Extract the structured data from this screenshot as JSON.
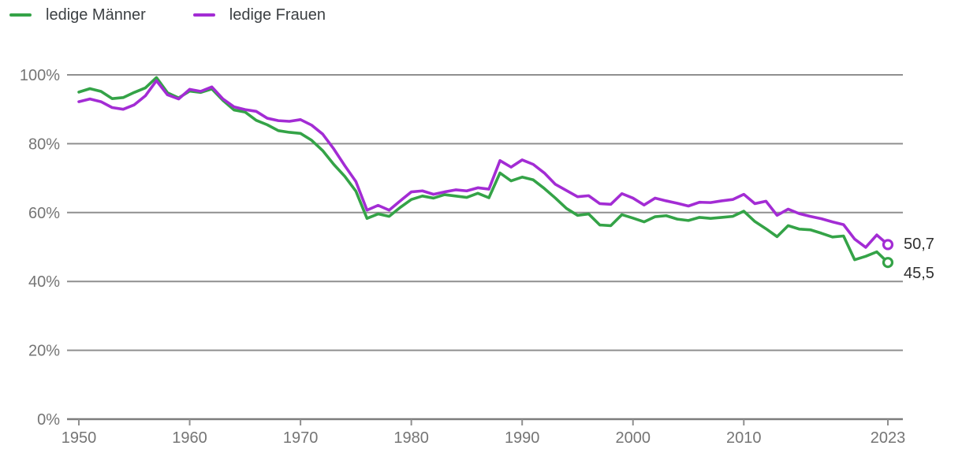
{
  "legend": {
    "items": [
      {
        "label": "ledige Männer",
        "color": "#34a347"
      },
      {
        "label": "ledige Frauen",
        "color": "#a32cd4"
      }
    ]
  },
  "annotations": {
    "frauen_end_value": "50,7",
    "maenner_end_value": "45,5"
  },
  "chart_data": {
    "type": "line",
    "title": "",
    "xlabel": "",
    "ylabel": "",
    "ylim": [
      0,
      100
    ],
    "grid": true,
    "legend_position": "top-left",
    "y_tick_values": [
      0,
      20,
      40,
      60,
      80,
      100
    ],
    "y_tick_labels": [
      "0%",
      "20%",
      "40%",
      "60%",
      "80%",
      "100%"
    ],
    "x_tick_years": [
      1950,
      1960,
      1970,
      1980,
      1990,
      2000,
      2010,
      2023
    ],
    "years": [
      1950,
      1951,
      1952,
      1953,
      1954,
      1955,
      1956,
      1957,
      1958,
      1959,
      1960,
      1961,
      1962,
      1963,
      1964,
      1965,
      1966,
      1967,
      1968,
      1969,
      1970,
      1971,
      1972,
      1973,
      1974,
      1975,
      1976,
      1977,
      1978,
      1979,
      1980,
      1981,
      1982,
      1983,
      1984,
      1985,
      1986,
      1987,
      1988,
      1989,
      1990,
      1991,
      1992,
      1993,
      1994,
      1995,
      1996,
      1997,
      1998,
      1999,
      2000,
      2001,
      2002,
      2003,
      2004,
      2005,
      2006,
      2007,
      2008,
      2009,
      2010,
      2011,
      2012,
      2013,
      2014,
      2015,
      2016,
      2017,
      2018,
      2019,
      2020,
      2021,
      2022,
      2023
    ],
    "series": [
      {
        "name": "ledige Männer",
        "color": "#34a347",
        "end_label": "45,5",
        "values": [
          95.0,
          96.0,
          95.2,
          93.1,
          93.4,
          94.9,
          96.2,
          99.2,
          94.8,
          93.3,
          95.3,
          94.9,
          95.9,
          92.6,
          89.8,
          89.2,
          86.8,
          85.5,
          83.8,
          83.3,
          83.0,
          81.0,
          78.0,
          74.0,
          70.5,
          66.2,
          58.3,
          59.6,
          58.9,
          61.5,
          63.8,
          64.8,
          64.2,
          65.2,
          64.8,
          64.4,
          65.6,
          64.3,
          71.5,
          69.2,
          70.3,
          69.5,
          67.0,
          64.2,
          61.2,
          59.2,
          59.6,
          56.4,
          56.2,
          59.4,
          58.4,
          57.3,
          58.8,
          59.1,
          58.1,
          57.7,
          58.6,
          58.3,
          58.6,
          58.9,
          60.4,
          57.4,
          55.3,
          53.0,
          56.2,
          55.2,
          55.0,
          54.0,
          52.9,
          53.2,
          46.3,
          47.3,
          48.6,
          45.5
        ]
      },
      {
        "name": "ledige Frauen",
        "color": "#a32cd4",
        "end_label": "50,7",
        "values": [
          92.2,
          93.0,
          92.2,
          90.5,
          90.0,
          91.3,
          93.9,
          98.3,
          94.2,
          93.0,
          95.8,
          95.2,
          96.5,
          93.0,
          90.7,
          89.9,
          89.4,
          87.4,
          86.7,
          86.5,
          87.0,
          85.4,
          82.8,
          78.5,
          73.6,
          69.0,
          60.7,
          62.1,
          60.7,
          63.4,
          66.0,
          66.3,
          65.3,
          66.0,
          66.6,
          66.3,
          67.2,
          66.8,
          75.1,
          73.2,
          75.3,
          74.0,
          71.5,
          68.2,
          66.4,
          64.6,
          64.9,
          62.6,
          62.4,
          65.5,
          64.2,
          62.2,
          64.2,
          63.4,
          62.7,
          61.9,
          63.0,
          62.9,
          63.4,
          63.8,
          65.3,
          62.6,
          63.3,
          59.2,
          61.0,
          59.7,
          58.9,
          58.2,
          57.3,
          56.5,
          52.3,
          49.9,
          53.5,
          50.7
        ]
      }
    ]
  }
}
